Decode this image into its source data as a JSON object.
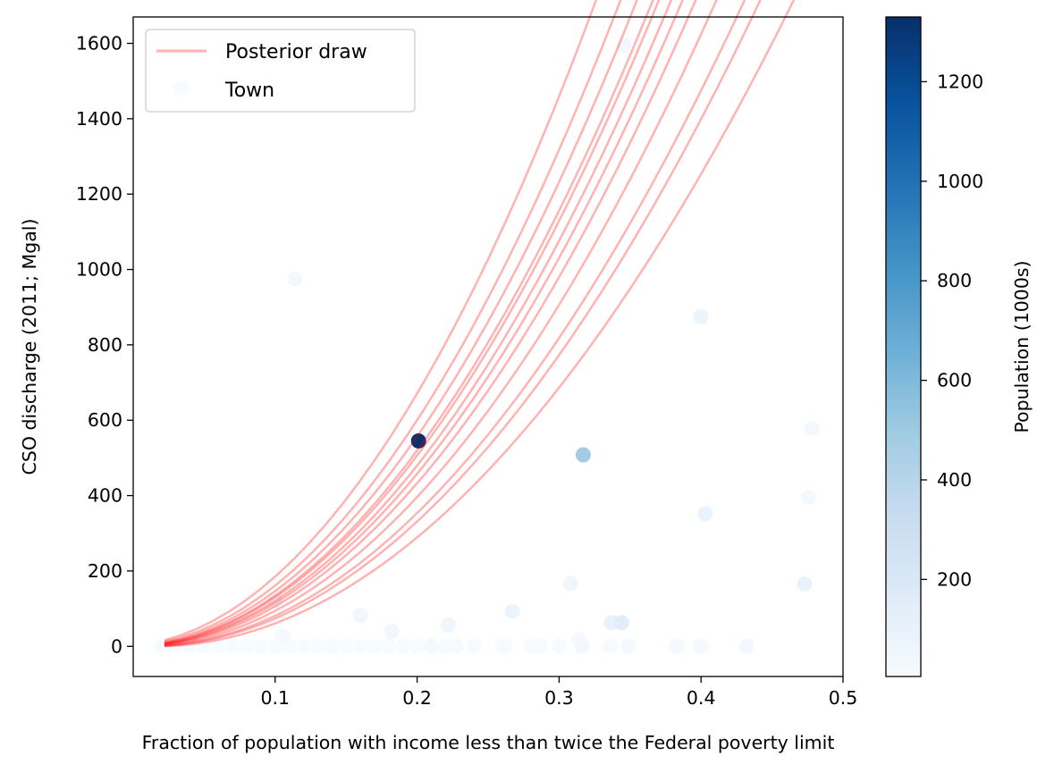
{
  "chart_data": {
    "type": "scatter",
    "xlabel": "Fraction of population with income less than twice the Federal poverty limit",
    "ylabel": "CSO discharge (2011; Mgal)",
    "xlim": [
      0.0,
      0.5
    ],
    "ylim": [
      -80,
      1670
    ],
    "x_ticks": [
      0.1,
      0.2,
      0.3,
      0.4,
      0.5
    ],
    "y_ticks": [
      0,
      200,
      400,
      600,
      800,
      1000,
      1200,
      1400,
      1600
    ],
    "grid": false,
    "legend": {
      "placement": "top-left",
      "entries": [
        {
          "label": "Posterior draw",
          "marker": "line",
          "color": "#ff0000"
        },
        {
          "label": "Town",
          "marker": "dot",
          "color": "#f2f7fd"
        }
      ]
    },
    "colorbar": {
      "label": "Population (1000s)",
      "colormap": "Blues",
      "range": [
        5,
        1330
      ],
      "ticks": [
        200,
        400,
        600,
        800,
        1000,
        1200
      ]
    },
    "series": [
      {
        "name": "Town",
        "kind": "scatter",
        "points": [
          {
            "x": 0.346,
            "y": 1595,
            "pop": 40
          },
          {
            "x": 0.114,
            "y": 975,
            "pop": 25
          },
          {
            "x": 0.4,
            "y": 875,
            "pop": 70
          },
          {
            "x": 0.201,
            "y": 545,
            "pop": 1320
          },
          {
            "x": 0.317,
            "y": 508,
            "pop": 480
          },
          {
            "x": 0.478,
            "y": 578,
            "pop": 30
          },
          {
            "x": 0.476,
            "y": 395,
            "pop": 25
          },
          {
            "x": 0.403,
            "y": 352,
            "pop": 90
          },
          {
            "x": 0.473,
            "y": 165,
            "pop": 90
          },
          {
            "x": 0.308,
            "y": 167,
            "pop": 60
          },
          {
            "x": 0.1,
            "y": 122,
            "pop": 40
          },
          {
            "x": 0.267,
            "y": 93,
            "pop": 80
          },
          {
            "x": 0.16,
            "y": 82,
            "pop": 45
          },
          {
            "x": 0.337,
            "y": 63,
            "pop": 100
          },
          {
            "x": 0.344,
            "y": 63,
            "pop": 150
          },
          {
            "x": 0.222,
            "y": 57,
            "pop": 60
          },
          {
            "x": 0.182,
            "y": 40,
            "pop": 45
          },
          {
            "x": 0.105,
            "y": 28,
            "pop": 25
          },
          {
            "x": 0.314,
            "y": 18,
            "pop": 30
          },
          {
            "x": 0.383,
            "y": 1,
            "pop": 30
          },
          {
            "x": 0.4,
            "y": 1,
            "pop": 25
          },
          {
            "x": 0.432,
            "y": 1,
            "pop": 35
          },
          {
            "x": 0.349,
            "y": 1,
            "pop": 25
          },
          {
            "x": 0.336,
            "y": 1,
            "pop": 20
          },
          {
            "x": 0.316,
            "y": 1,
            "pop": 40
          },
          {
            "x": 0.287,
            "y": 1,
            "pop": 20
          },
          {
            "x": 0.262,
            "y": 1,
            "pop": 15
          },
          {
            "x": 0.228,
            "y": 1,
            "pop": 20
          },
          {
            "x": 0.21,
            "y": 1,
            "pop": 25
          }
        ],
        "baseline_cluster": {
          "y": 0,
          "x": [
            0.02,
            0.03,
            0.04,
            0.05,
            0.06,
            0.07,
            0.08,
            0.09,
            0.1,
            0.11,
            0.12,
            0.13,
            0.14,
            0.15,
            0.16,
            0.17,
            0.18,
            0.19,
            0.2,
            0.22,
            0.24,
            0.26,
            0.28,
            0.3
          ],
          "pop": 10
        }
      },
      {
        "name": "Posterior draw",
        "kind": "lines",
        "x_range": [
          0.022,
          0.478
        ],
        "draws": [
          {
            "a": 0.3,
            "b": 1.11
          },
          {
            "a": -1.4,
            "b": 0.92
          },
          {
            "a": 1.3,
            "b": 1.23
          },
          {
            "a": 0.0,
            "b": 1.07
          },
          {
            "a": -0.5,
            "b": 1.02
          },
          {
            "a": 0.6,
            "b": 1.15
          },
          {
            "a": -0.2,
            "b": 1.05
          },
          {
            "a": 0.9,
            "b": 1.18
          },
          {
            "a": 0.1,
            "b": 1.09
          },
          {
            "a": -0.8,
            "b": 0.98
          },
          {
            "a": 0.4,
            "b": 1.12
          },
          {
            "a": -1.0,
            "b": 0.96
          }
        ]
      }
    ]
  }
}
